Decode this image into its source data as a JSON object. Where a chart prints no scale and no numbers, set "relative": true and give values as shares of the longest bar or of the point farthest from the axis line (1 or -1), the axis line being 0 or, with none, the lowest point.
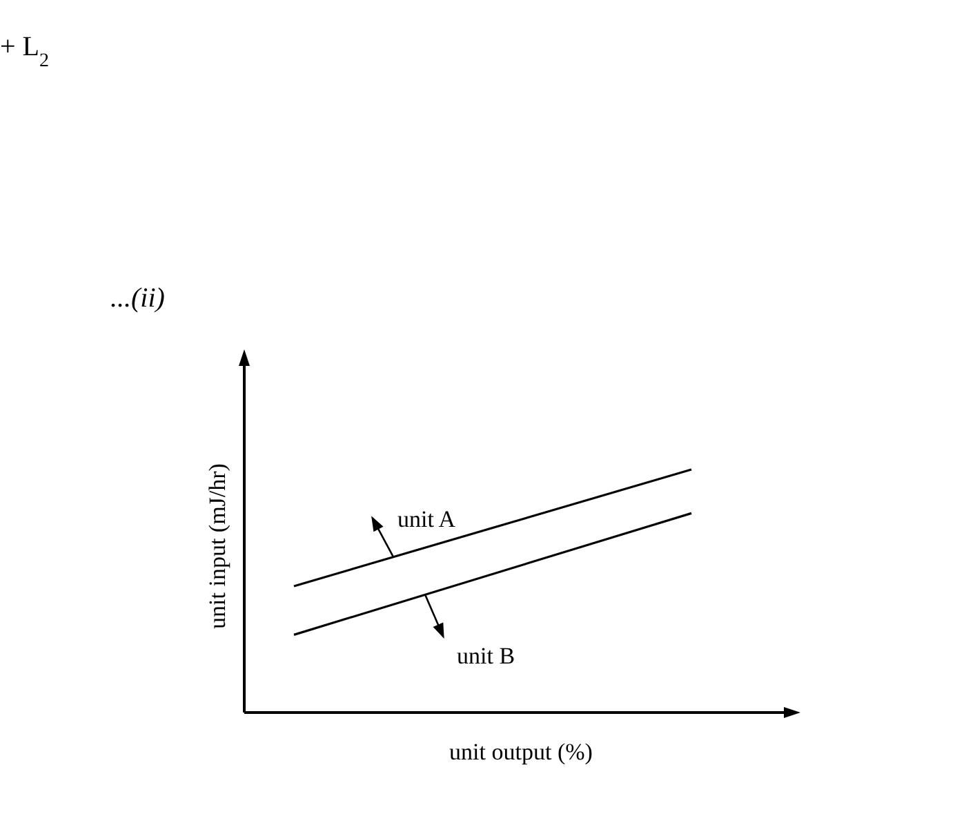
{
  "chart_data": {
    "type": "line",
    "relative": true,
    "xlabel": "unit output (%)",
    "ylabel": "unit input (mJ/hr)",
    "annotations": [
      "+ L$_{2}$",
      "...(ii)"
    ],
    "categories": [
      null,
      null,
      null,
      null,
      null,
      null,
      null,
      null,
      null,
      null
    ],
    "series": [
      {
        "name": "unit A",
        "color": "#000000",
        "values": [
          0.52,
          null,
          null,
          null,
          null,
          null,
          null,
          null,
          null,
          1.0
        ]
      },
      {
        "name": "unit B",
        "color": "#000000",
        "values": [
          0.32,
          null,
          null,
          null,
          null,
          null,
          null,
          null,
          null,
          0.82
        ]
      }
    ],
    "marker": "none",
    "line_style": "solid"
  }
}
